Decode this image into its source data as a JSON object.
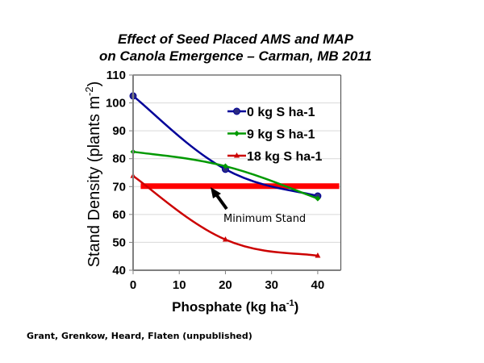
{
  "chart_data": {
    "type": "line",
    "title": "Effect of Seed Placed AMS and MAP",
    "subtitle": "on Canola Emergence – Carman, MB  2011",
    "xlabel": "Phosphate (kg ha",
    "xlabel_sup": "-1",
    "xlabel_end": ")",
    "ylabel": "Stand Density (plants m",
    "ylabel_sup": "-2",
    "ylabel_end": ")",
    "xlim": [
      0,
      45
    ],
    "ylim": [
      40,
      110
    ],
    "xticks": [
      0,
      10,
      20,
      30,
      40
    ],
    "yticks": [
      40,
      50,
      60,
      70,
      80,
      90,
      100,
      110
    ],
    "grid": "horizontal",
    "legend_position": "top-right",
    "x": [
      0,
      20,
      40
    ],
    "series": [
      {
        "name": "0 kg S ha-1",
        "values": [
          102.5,
          76.2,
          66.6
        ],
        "color": "#000099",
        "marker": "circle"
      },
      {
        "name": "9 kg S ha-1",
        "values": [
          82.5,
          77.3,
          65.7
        ],
        "color": "#009900",
        "marker": "diamond"
      },
      {
        "name": "18 kg S ha-1",
        "values": [
          73.8,
          51.0,
          45.2
        ],
        "color": "#CC0000",
        "marker": "triangle"
      }
    ],
    "reference_line": {
      "label": "Minimum  Stand",
      "value": 70,
      "x_range": [
        2,
        45
      ],
      "color": "#FF0000"
    }
  },
  "credit": "Grant, Grenkow, Heard, Flaten (unpublished)"
}
